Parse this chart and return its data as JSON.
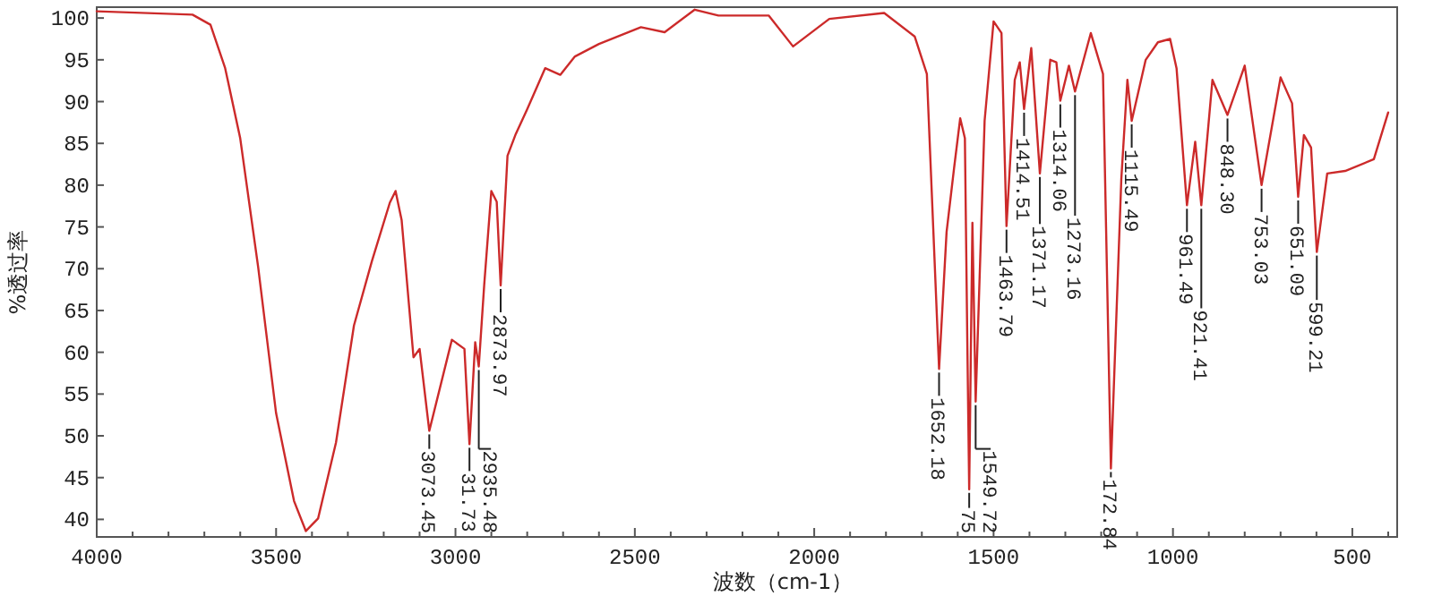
{
  "chart_data": {
    "type": "line",
    "xlabel": "波数（cm-1）",
    "ylabel": "%透过率",
    "xlim": [
      4000,
      375
    ],
    "ylim": [
      37.9,
      101.3
    ],
    "xticks": [
      4000,
      {
        "value": 3900,
        "label": null
      },
      {
        "value": 3800,
        "label": null
      },
      {
        "value": 3700,
        "label": null
      },
      {
        "value": 3600,
        "label": null
      },
      3500,
      {
        "value": 3400,
        "label": null
      },
      {
        "value": 3300,
        "label": null
      },
      {
        "value": 3200,
        "label": null
      },
      {
        "value": 3100,
        "label": null
      },
      3000,
      {
        "value": 2900,
        "label": null
      },
      {
        "value": 2800,
        "label": null
      },
      {
        "value": 2700,
        "label": null
      },
      {
        "value": 2600,
        "label": null
      },
      2500,
      {
        "value": 2400,
        "label": null
      },
      {
        "value": 2300,
        "label": null
      },
      {
        "value": 2200,
        "label": null
      },
      {
        "value": 2100,
        "label": null
      },
      2000,
      {
        "value": 1900,
        "label": null
      },
      {
        "value": 1800,
        "label": null
      },
      {
        "value": 1700,
        "label": null
      },
      {
        "value": 1600,
        "label": null
      },
      1500,
      {
        "value": 1400,
        "label": null
      },
      {
        "value": 1300,
        "label": null
      },
      {
        "value": 1200,
        "label": null
      },
      {
        "value": 1100,
        "label": null
      },
      1000,
      {
        "value": 900,
        "label": null
      },
      {
        "value": 800,
        "label": null
      },
      {
        "value": 700,
        "label": null
      },
      {
        "value": 600,
        "label": null
      },
      500,
      {
        "value": 400,
        "label": null
      }
    ],
    "yticks": [
      40,
      45,
      50,
      55,
      60,
      65,
      70,
      75,
      80,
      85,
      90,
      95,
      100
    ],
    "grid": false,
    "marker": "none",
    "line_style": "solid",
    "series": [
      {
        "color": "#cc2a2a",
        "x": [
          4000,
          3733,
          3683,
          3642,
          3600,
          3550,
          3500,
          3450,
          3417,
          3383,
          3333,
          3283,
          3233,
          3183,
          3167,
          3150,
          3117,
          3100,
          3073,
          3010,
          2975,
          2961,
          2945,
          2935,
          2920,
          2900,
          2885,
          2874,
          2855,
          2833,
          2800,
          2750,
          2708,
          2667,
          2600,
          2483,
          2417,
          2333,
          2267,
          2127,
          2059,
          1958,
          1805,
          1720,
          1686,
          1652,
          1631,
          1610,
          1593,
          1580,
          1573,
          1568,
          1559,
          1550,
          1525,
          1500,
          1478,
          1464,
          1441,
          1427,
          1415,
          1395,
          1371,
          1342,
          1325,
          1314,
          1290,
          1273,
          1229,
          1195,
          1173,
          1144,
          1127,
          1115,
          1076,
          1042,
          1008,
          990,
          961,
          938,
          921,
          890,
          848,
          800,
          753,
          700,
          668,
          651,
          635,
          615,
          599,
          570,
          520,
          440,
          400
        ],
        "values": [
          100.8,
          100.4,
          99.2,
          94,
          85.6,
          70.2,
          52.7,
          42.2,
          38.6,
          40.1,
          49.2,
          63.2,
          70.9,
          77.9,
          79.3,
          75.8,
          59.4,
          60.4,
          50.6,
          61.5,
          60.4,
          49,
          61.2,
          58.3,
          68,
          79.3,
          78,
          68,
          83.5,
          86,
          89.1,
          94,
          93.2,
          95.4,
          96.9,
          98.9,
          98.3,
          101,
          100.3,
          100.3,
          96.6,
          99.9,
          100.6,
          97.8,
          93.3,
          58,
          74.4,
          82.1,
          88,
          85.6,
          60.4,
          43.6,
          75.5,
          54.1,
          87.7,
          99.6,
          98.2,
          75.1,
          92.6,
          94.7,
          89.1,
          96.4,
          81.4,
          95,
          94.7,
          90.1,
          94.3,
          91.2,
          98.2,
          93.3,
          46.1,
          80.7,
          92.6,
          87.7,
          95,
          97.1,
          97.5,
          94,
          77.6,
          85.2,
          77.6,
          92.6,
          88.4,
          94.3,
          80,
          92.9,
          89.8,
          78.6,
          86,
          84.5,
          72,
          81.4,
          81.7,
          83.1,
          88.7
        ]
      }
    ],
    "annotations": [
      {
        "text": "3073.45",
        "x": 3073,
        "y": 50.6
      },
      {
        "text": "31.73",
        "x": 2961,
        "y": 49
      },
      {
        "text": "2935.48",
        "x": 2935,
        "y": 58.3
      },
      {
        "text": "2873.97",
        "x": 2874,
        "y": 68
      },
      {
        "text": "1652.18",
        "x": 1652,
        "y": 58
      },
      {
        "text": "75",
        "x": 1568,
        "y": 43.6
      },
      {
        "text": "1549.72",
        "x": 1550,
        "y": 54.1
      },
      {
        "text": "1463.79",
        "x": 1464,
        "y": 75.1
      },
      {
        "text": "1414.51",
        "x": 1415,
        "y": 89.1
      },
      {
        "text": "1371.17",
        "x": 1371,
        "y": 81.4
      },
      {
        "text": "1314.06",
        "x": 1314,
        "y": 90.1
      },
      {
        "text": "1273.16",
        "x": 1273,
        "y": 91.2
      },
      {
        "text": "172.84",
        "x": 1173,
        "y": 46.1
      },
      {
        "text": "1115.49",
        "x": 1115,
        "y": 87.7
      },
      {
        "text": "961.49",
        "x": 961,
        "y": 77.6
      },
      {
        "text": "921.41",
        "x": 921,
        "y": 77.6
      },
      {
        "text": "848.30",
        "x": 848,
        "y": 88.4
      },
      {
        "text": "753.03",
        "x": 753,
        "y": 80
      },
      {
        "text": "651.09",
        "x": 651,
        "y": 78.6
      },
      {
        "text": "599.21",
        "x": 599,
        "y": 72
      }
    ]
  }
}
